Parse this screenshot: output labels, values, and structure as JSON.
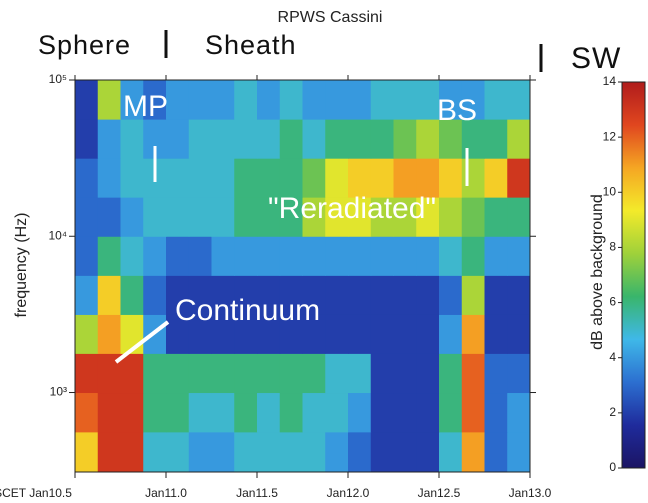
{
  "chart_data": {
    "type": "heatmap",
    "title": "RPWS Cassini",
    "regions": [
      "Sphere",
      "Sheath",
      "SW"
    ],
    "annotations": [
      "MP",
      "BS",
      "\"Reradiated\"",
      "Continuum"
    ],
    "y_label": "frequency (Hz)",
    "colorbar_label": "dB above background",
    "log_y": true,
    "xlim": [
      10.5,
      13.0
    ],
    "xticks": [
      {
        "value": 10.5,
        "label": "SCET Jan10.5"
      },
      {
        "value": 11.0,
        "label": "Jan11.0"
      },
      {
        "value": 11.5,
        "label": "Jan11.5"
      },
      {
        "value": 12.0,
        "label": "Jan12.0"
      },
      {
        "value": 12.5,
        "label": "Jan12.5"
      },
      {
        "value": 13.0,
        "label": "Jan13.0"
      }
    ],
    "ylim": [
      310,
      100000
    ],
    "yticks": [
      {
        "value": 1000,
        "label": "10³"
      },
      {
        "value": 10000,
        "label": "10⁴"
      },
      {
        "value": 100000,
        "label": "10⁵"
      }
    ],
    "x_edges": [
      10.5,
      10.625,
      10.75,
      10.875,
      11.0,
      11.125,
      11.25,
      11.375,
      11.5,
      11.625,
      11.75,
      11.875,
      12.0,
      12.125,
      12.25,
      12.375,
      12.5,
      12.625,
      12.75,
      12.875,
      13.0
    ],
    "y_edges": [
      310,
      560,
      1000,
      1780,
      3160,
      5620,
      10000,
      17800,
      31600,
      56200,
      100000
    ],
    "z": [
      [
        10,
        13,
        13,
        5,
        5,
        4,
        4,
        5,
        5,
        5,
        5,
        4,
        3,
        2,
        2,
        2,
        5,
        11,
        3,
        4
      ],
      [
        12,
        13,
        13,
        6,
        6,
        5,
        5,
        6,
        5,
        6,
        5,
        5,
        4,
        2,
        2,
        2,
        6,
        12,
        3,
        4
      ],
      [
        13,
        13,
        13,
        6,
        6,
        6,
        6,
        6,
        6,
        6,
        6,
        5,
        5,
        2,
        2,
        2,
        6,
        12,
        3,
        3
      ],
      [
        8,
        11,
        9,
        4,
        2,
        2,
        2,
        2,
        2,
        2,
        2,
        2,
        2,
        2,
        2,
        2,
        4,
        11,
        2,
        2
      ],
      [
        4,
        10,
        6,
        3,
        2,
        2,
        2,
        2,
        2,
        2,
        2,
        2,
        2,
        2,
        2,
        2,
        3,
        8,
        2,
        2
      ],
      [
        3,
        6,
        5,
        4,
        3,
        3,
        4,
        4,
        4,
        4,
        4,
        4,
        4,
        4,
        4,
        4,
        5,
        6,
        4,
        4
      ],
      [
        3,
        3,
        4,
        5,
        5,
        5,
        5,
        6,
        6,
        6,
        8,
        9,
        9,
        8,
        8,
        9,
        8,
        7,
        6,
        6
      ],
      [
        3,
        4,
        5,
        5,
        5,
        5,
        5,
        6,
        6,
        6,
        7,
        9,
        10,
        10,
        11,
        11,
        10,
        8,
        10,
        13
      ],
      [
        2,
        4,
        5,
        4,
        4,
        5,
        5,
        5,
        5,
        6,
        5,
        6,
        6,
        6,
        7,
        8,
        7,
        6,
        6,
        8
      ],
      [
        2,
        8,
        4,
        3,
        4,
        4,
        4,
        5,
        4,
        5,
        4,
        4,
        4,
        5,
        5,
        5,
        4,
        4,
        5,
        5
      ]
    ],
    "clim": [
      0,
      14
    ],
    "cticks": [
      0,
      2,
      4,
      6,
      8,
      10,
      12,
      14
    ],
    "colormap": [
      "#1b1464",
      "#1f2b9c",
      "#2c6fd0",
      "#3fb8e8",
      "#39b56b",
      "#9fd13a",
      "#f3ea2a",
      "#f5a623",
      "#e0461f",
      "#b01c1c"
    ]
  }
}
